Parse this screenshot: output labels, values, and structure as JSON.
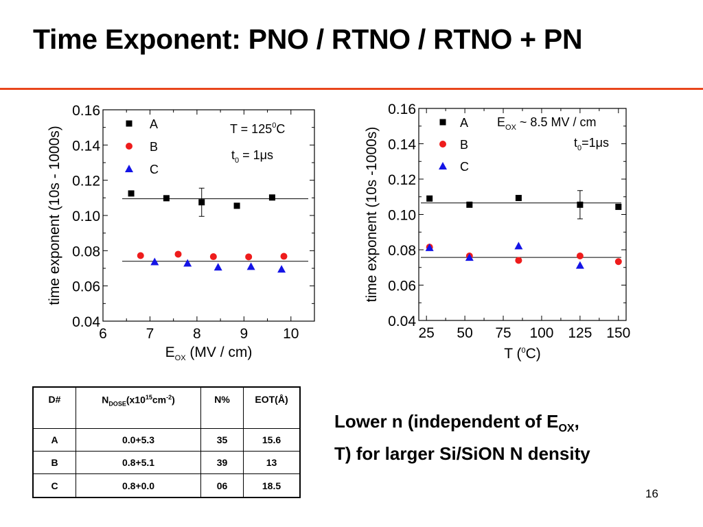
{
  "slide": {
    "title": "Time Exponent: PNO / RTNO / RTNO + PN",
    "page_number": "16",
    "conclusion": {
      "line1_pre": "Lower n (independent of E",
      "line1_sub": "OX",
      "line1_post": ",",
      "line2": "T) for larger Si/SiON N density"
    }
  },
  "colors": {
    "accent_rule": "#e8461c",
    "series_A": "#000000",
    "series_B": "#ee1c1c",
    "series_C": "#1414e6"
  },
  "chart_data": [
    {
      "type": "scatter",
      "ylabel": "time exponent (10s - 1000s)",
      "xlabel_main": "E",
      "xlabel_sub": "OX",
      "xlabel_tail": " (MV / cm)",
      "xlim": [
        6,
        10.5
      ],
      "ylim": [
        0.04,
        0.16
      ],
      "xticks": [
        6,
        7,
        8,
        9,
        10
      ],
      "yticks": [
        0.04,
        0.06,
        0.08,
        0.1,
        0.12,
        0.14,
        0.16
      ],
      "xtick_labels": [
        "6",
        "7",
        "8",
        "9",
        "10"
      ],
      "ytick_labels": [
        "0.04",
        "0.06",
        "0.08",
        "0.10",
        "0.12",
        "0.14",
        "0.16"
      ],
      "legend_position": "top-left",
      "series": [
        {
          "name": "A",
          "marker": "square",
          "color": "#000000",
          "x": [
            6.6,
            7.35,
            8.1,
            8.85,
            9.6
          ],
          "y": [
            0.1125,
            0.1098,
            0.1075,
            0.1055,
            0.1102
          ],
          "error_bar": {
            "x": 8.1,
            "low": 0.0995,
            "high": 0.1155
          }
        },
        {
          "name": "B",
          "marker": "circle",
          "color": "#ee1c1c",
          "x": [
            6.8,
            7.6,
            8.35,
            9.1,
            9.85
          ],
          "y": [
            0.0772,
            0.078,
            0.0766,
            0.0765,
            0.0768
          ]
        },
        {
          "name": "C",
          "marker": "triangle",
          "color": "#1414e6",
          "x": [
            7.1,
            7.8,
            8.45,
            9.15,
            9.8
          ],
          "y": [
            0.0737,
            0.0729,
            0.0707,
            0.071,
            0.0695
          ]
        }
      ],
      "fit_lines": [
        {
          "y": 0.1095
        },
        {
          "y": 0.074
        }
      ],
      "annotations": [
        {
          "pre": "T = 125",
          "sup": "0",
          "post": "C"
        },
        {
          "pre": "t",
          "sub": "0",
          "post": " = 1μs"
        }
      ]
    },
    {
      "type": "scatter",
      "ylabel": "time exponent (10s -1000s)",
      "xlabel_main": "T (",
      "xlabel_sup": "0",
      "xlabel_tail": "C)",
      "xlim": [
        20,
        155
      ],
      "ylim": [
        0.04,
        0.16
      ],
      "xticks": [
        25,
        50,
        75,
        100,
        125,
        150
      ],
      "yticks": [
        0.04,
        0.06,
        0.08,
        0.1,
        0.12,
        0.14,
        0.16
      ],
      "xtick_labels": [
        "25",
        "50",
        "75",
        "100",
        "125",
        "150"
      ],
      "ytick_labels": [
        "0.04",
        "0.06",
        "0.08",
        "0.10",
        "0.12",
        "0.14",
        "0.16"
      ],
      "legend_position": "top-left",
      "series": [
        {
          "name": "A",
          "marker": "square",
          "color": "#000000",
          "x": [
            27,
            53,
            85,
            125,
            150
          ],
          "y": [
            0.109,
            0.1055,
            0.1093,
            0.1055,
            0.1043
          ],
          "error_bar": {
            "x": 125,
            "low": 0.0975,
            "high": 0.1135
          }
        },
        {
          "name": "B",
          "marker": "circle",
          "color": "#ee1c1c",
          "x": [
            27,
            53,
            85,
            125,
            150
          ],
          "y": [
            0.0815,
            0.0765,
            0.074,
            0.0765,
            0.0733
          ]
        },
        {
          "name": "C",
          "marker": "triangle",
          "color": "#1414e6",
          "x": [
            27,
            53,
            85,
            125
          ],
          "y": [
            0.0812,
            0.0757,
            0.0822,
            0.0712
          ]
        }
      ],
      "fit_lines": [
        {
          "y": 0.1065
        },
        {
          "y": 0.0757
        }
      ],
      "annotations": [
        {
          "pre": "E",
          "sub": "OX",
          "post": " ~ 8.5 MV / cm"
        },
        {
          "pre": "t",
          "sub": "0",
          "post": "=1μs"
        }
      ]
    }
  ],
  "table": {
    "headers": {
      "device": "D#",
      "dose_main": "N",
      "dose_sub": "DOSE",
      "dose_mid": "(x10",
      "dose_sup": "15",
      "dose_unit": "cm",
      "dose_exp": "-2",
      "dose_close": ")",
      "nitrogen": "N%",
      "eot": "EOT(Å)"
    },
    "rows": [
      {
        "device": "A",
        "dose": "0.0+5.3",
        "nitrogen": "35",
        "eot": "15.6"
      },
      {
        "device": "B",
        "dose": "0.8+5.1",
        "nitrogen": "39",
        "eot": "13"
      },
      {
        "device": "C",
        "dose": "0.8+0.0",
        "nitrogen": "06",
        "eot": "18.5"
      }
    ]
  }
}
